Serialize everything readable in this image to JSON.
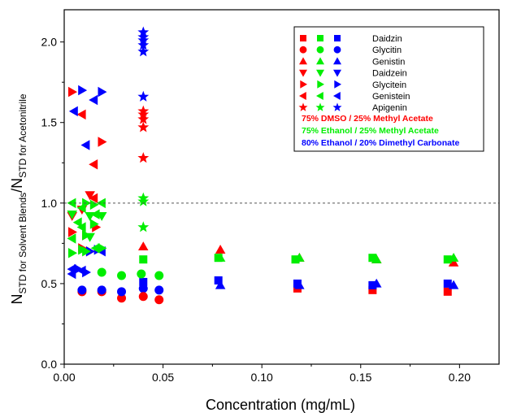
{
  "chart_data": {
    "type": "scatter",
    "xlabel": "Concentration (mg/mL)",
    "ylabel": {
      "main1": "N",
      "sub1": "STD for Solvent Blends",
      "main2": "/N",
      "sub2": "STD for Acetonitrile"
    },
    "xlim": [
      0.0,
      0.22
    ],
    "ylim": [
      0.0,
      2.2
    ],
    "xticks": [
      "0.00",
      "0.05",
      "0.10",
      "0.15",
      "0.20"
    ],
    "yticks": [
      "0.0",
      "0.5",
      "1.0",
      "1.5",
      "2.0"
    ],
    "xtick_values": [
      0,
      0.05,
      0.1,
      0.15,
      0.2
    ],
    "ytick_values": [
      0,
      0.5,
      1.0,
      1.5,
      2.0
    ],
    "reference_line": {
      "y": 1.0,
      "style": "dashed"
    },
    "grid": false,
    "legend_position": "top-right",
    "blends": [
      {
        "id": "red",
        "label": "75% DMSO / 25% Methyl Acetate",
        "color": "#ff0000"
      },
      {
        "id": "green",
        "label": "75% Ethanol / 25% Methyl Acetate",
        "color": "#00ee00"
      },
      {
        "id": "blue",
        "label": "80% Ethanol / 20% Dimethyl Carbonate",
        "color": "#0000ff"
      }
    ],
    "compounds": [
      {
        "name": "Daidzin",
        "marker": "square"
      },
      {
        "name": "Glycitin",
        "marker": "circle"
      },
      {
        "name": "Genistin",
        "marker": "triangle-up"
      },
      {
        "name": "Daidzein",
        "marker": "triangle-down"
      },
      {
        "name": "Glycitein",
        "marker": "triangle-right"
      },
      {
        "name": "Genistein",
        "marker": "triangle-left"
      },
      {
        "name": "Apigenin",
        "marker": "star"
      }
    ],
    "points": [
      [
        "red",
        "star",
        0.04,
        1.57
      ],
      [
        "red",
        "star",
        0.04,
        1.55
      ],
      [
        "red",
        "star",
        0.04,
        1.52
      ],
      [
        "red",
        "star",
        0.04,
        1.47
      ],
      [
        "red",
        "star",
        0.04,
        1.28
      ],
      [
        "blue",
        "star",
        0.04,
        2.06
      ],
      [
        "blue",
        "star",
        0.04,
        2.03
      ],
      [
        "blue",
        "star",
        0.04,
        2.01
      ],
      [
        "blue",
        "star",
        0.04,
        1.98
      ],
      [
        "blue",
        "star",
        0.04,
        1.94
      ],
      [
        "blue",
        "star",
        0.04,
        1.66
      ],
      [
        "green",
        "star",
        0.04,
        1.03
      ],
      [
        "green",
        "star",
        0.04,
        1.01
      ],
      [
        "green",
        "star",
        0.04,
        0.85
      ],
      [
        "red",
        "triangle-up",
        0.04,
        0.73
      ],
      [
        "green",
        "square",
        0.04,
        0.65
      ],
      [
        "blue",
        "square",
        0.04,
        0.51
      ],
      [
        "blue",
        "circle",
        0.04,
        0.47
      ],
      [
        "red",
        "circle",
        0.04,
        0.42
      ],
      [
        "green",
        "circle",
        0.039,
        0.56
      ],
      [
        "red",
        "triangle-right",
        0.004,
        1.69
      ],
      [
        "red",
        "triangle-left",
        0.009,
        1.55
      ],
      [
        "red",
        "triangle-right",
        0.019,
        1.38
      ],
      [
        "red",
        "triangle-left",
        0.015,
        1.24
      ],
      [
        "red",
        "triangle-down",
        0.013,
        1.05
      ],
      [
        "red",
        "triangle-down",
        0.004,
        0.92
      ],
      [
        "red",
        "triangle-down",
        0.009,
        0.96
      ],
      [
        "red",
        "triangle-left",
        0.015,
        1.03
      ],
      [
        "red",
        "triangle-right",
        0.004,
        0.82
      ],
      [
        "red",
        "triangle-right",
        0.011,
        0.8
      ],
      [
        "red",
        "triangle-right",
        0.016,
        0.85
      ],
      [
        "red",
        "triangle-right",
        0.009,
        0.72
      ],
      [
        "red",
        "triangle-right",
        0.013,
        0.7
      ],
      [
        "red",
        "circle",
        0.009,
        0.45
      ],
      [
        "red",
        "circle",
        0.019,
        0.45
      ],
      [
        "red",
        "circle",
        0.029,
        0.41
      ],
      [
        "red",
        "circle",
        0.048,
        0.4
      ],
      [
        "blue",
        "triangle-left",
        0.005,
        1.57
      ],
      [
        "blue",
        "triangle-right",
        0.009,
        1.7
      ],
      [
        "blue",
        "triangle-right",
        0.019,
        1.69
      ],
      [
        "blue",
        "triangle-left",
        0.015,
        1.64
      ],
      [
        "blue",
        "triangle-left",
        0.011,
        1.36
      ],
      [
        "blue",
        "triangle-right",
        0.017,
        0.71
      ],
      [
        "blue",
        "triangle-right",
        0.013,
        0.7
      ],
      [
        "blue",
        "triangle-left",
        0.019,
        0.7
      ],
      [
        "blue",
        "triangle-left",
        0.004,
        0.59
      ],
      [
        "blue",
        "triangle-right",
        0.007,
        0.59
      ],
      [
        "blue",
        "triangle-left",
        0.009,
        0.58
      ],
      [
        "blue",
        "triangle-right",
        0.011,
        0.57
      ],
      [
        "blue",
        "triangle-left",
        0.004,
        0.56
      ],
      [
        "blue",
        "circle",
        0.009,
        0.46
      ],
      [
        "blue",
        "circle",
        0.019,
        0.46
      ],
      [
        "blue",
        "circle",
        0.029,
        0.45
      ],
      [
        "blue",
        "circle",
        0.048,
        0.46
      ],
      [
        "green",
        "triangle-left",
        0.004,
        1.0
      ],
      [
        "green",
        "triangle-right",
        0.011,
        1.0
      ],
      [
        "green",
        "triangle-left",
        0.019,
        1.0
      ],
      [
        "green",
        "triangle-right",
        0.015,
        0.99
      ],
      [
        "green",
        "triangle-left",
        0.009,
        0.97
      ],
      [
        "green",
        "triangle-down",
        0.004,
        0.93
      ],
      [
        "green",
        "triangle-down",
        0.013,
        0.92
      ],
      [
        "green",
        "triangle-down",
        0.019,
        0.92
      ],
      [
        "green",
        "triangle-left",
        0.016,
        0.93
      ],
      [
        "green",
        "triangle-left",
        0.007,
        0.88
      ],
      [
        "green",
        "triangle-left",
        0.009,
        0.85
      ],
      [
        "green",
        "triangle-right",
        0.015,
        0.87
      ],
      [
        "green",
        "triangle-right",
        0.011,
        0.8
      ],
      [
        "green",
        "triangle-left",
        0.004,
        0.78
      ],
      [
        "green",
        "triangle-down",
        0.013,
        0.79
      ],
      [
        "green",
        "triangle-right",
        0.004,
        0.69
      ],
      [
        "green",
        "triangle-right",
        0.009,
        0.71
      ],
      [
        "green",
        "triangle-right",
        0.011,
        0.7
      ],
      [
        "green",
        "triangle-left",
        0.016,
        0.72
      ],
      [
        "green",
        "triangle-right",
        0.019,
        0.72
      ],
      [
        "green",
        "circle",
        0.019,
        0.57
      ],
      [
        "green",
        "circle",
        0.029,
        0.55
      ],
      [
        "green",
        "circle",
        0.048,
        0.55
      ],
      [
        "blue",
        "square",
        0.078,
        0.52
      ],
      [
        "blue",
        "triangle-up",
        0.079,
        0.49
      ],
      [
        "red",
        "triangle-up",
        0.079,
        0.71
      ],
      [
        "green",
        "triangle-up",
        0.079,
        0.66
      ],
      [
        "green",
        "square",
        0.078,
        0.66
      ],
      [
        "red",
        "square",
        0.118,
        0.47
      ],
      [
        "blue",
        "square",
        0.118,
        0.5
      ],
      [
        "blue",
        "triangle-up",
        0.119,
        0.49
      ],
      [
        "red",
        "triangle-up",
        0.119,
        0.66
      ],
      [
        "green",
        "square",
        0.117,
        0.65
      ],
      [
        "green",
        "triangle-up",
        0.119,
        0.66
      ],
      [
        "red",
        "square",
        0.156,
        0.46
      ],
      [
        "blue",
        "square",
        0.156,
        0.49
      ],
      [
        "blue",
        "triangle-up",
        0.158,
        0.5
      ],
      [
        "red",
        "triangle-up",
        0.158,
        0.65
      ],
      [
        "green",
        "square",
        0.156,
        0.66
      ],
      [
        "green",
        "triangle-up",
        0.158,
        0.65
      ],
      [
        "red",
        "square",
        0.194,
        0.45
      ],
      [
        "blue",
        "square",
        0.194,
        0.5
      ],
      [
        "blue",
        "triangle-up",
        0.197,
        0.49
      ],
      [
        "red",
        "triangle-up",
        0.197,
        0.63
      ],
      [
        "green",
        "square",
        0.194,
        0.65
      ],
      [
        "green",
        "triangle-up",
        0.197,
        0.66
      ]
    ]
  }
}
